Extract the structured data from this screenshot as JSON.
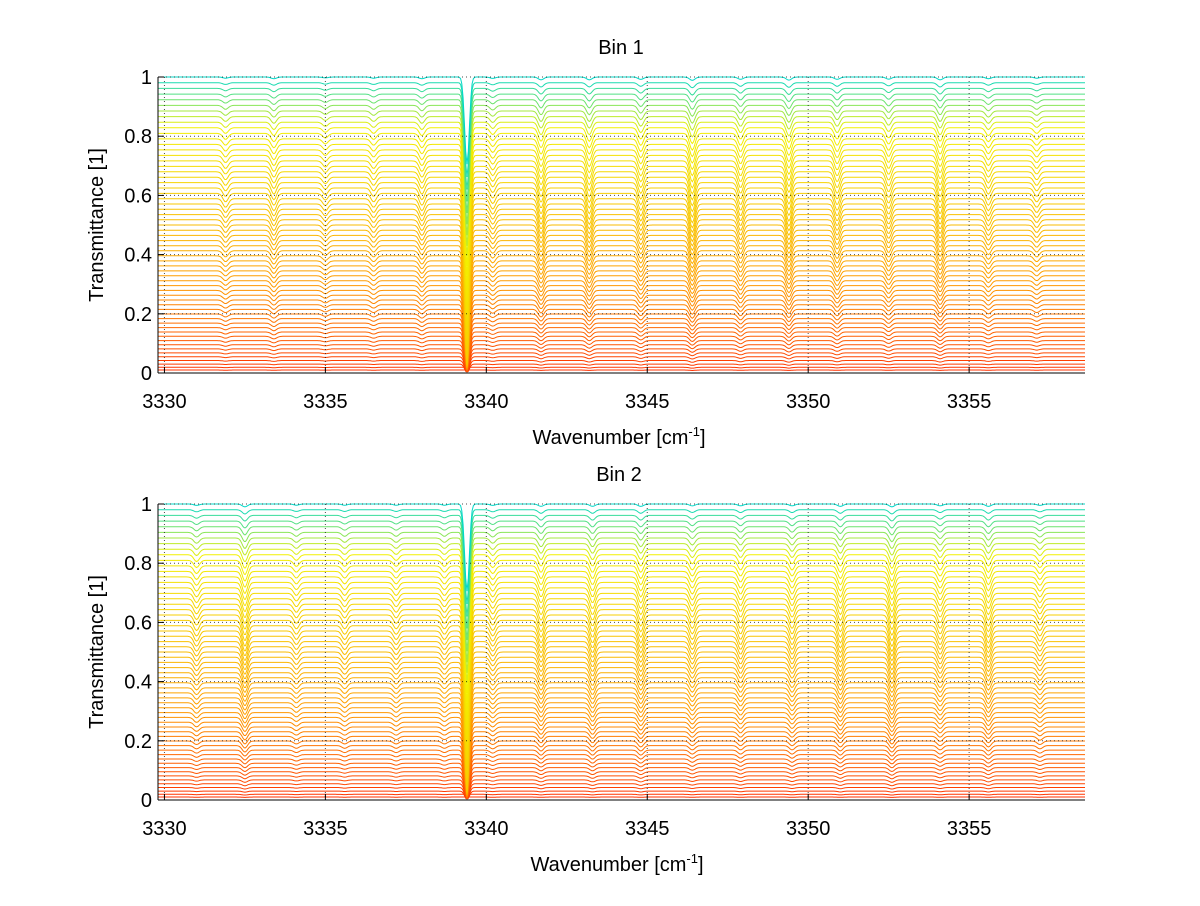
{
  "figure": {
    "background": "#ffffff"
  },
  "chart_data": [
    {
      "type": "line",
      "title": "Bin 1",
      "xlabel_main": "Wavenumber [cm",
      "xlabel_sup": "-1",
      "xlabel_close": "]",
      "ylabel": "Transmittance [1]",
      "xlim": [
        3329.8,
        3358.6
      ],
      "ylim": [
        0,
        1
      ],
      "xticks": [
        3330,
        3335,
        3340,
        3345,
        3350,
        3355
      ],
      "xtick_labels": [
        "3330",
        "3335",
        "3340",
        "3345",
        "3350",
        "3355"
      ],
      "yticks": [
        0,
        0.2,
        0.4,
        0.6,
        0.8,
        1
      ],
      "ytick_labels": [
        "0",
        "0.2",
        "0.4",
        "0.6",
        "0.8",
        "1"
      ],
      "grid": true,
      "colormap": "jet-upper (cyan → yellow → orange → red)",
      "colors": {
        "high": "#00d8c8",
        "mid": "#f2f000",
        "low_mid": "#ff9a00",
        "low": "#ff3000"
      },
      "series_count": 60,
      "baseline_range": [
        0.01,
        1.0
      ],
      "absorption_lines": [
        {
          "x": 3331.9,
          "depth": 0.05,
          "width": 0.12
        },
        {
          "x": 3333.4,
          "depth": 0.07,
          "width": 0.12
        },
        {
          "x": 3335.0,
          "depth": 0.04,
          "width": 0.12
        },
        {
          "x": 3336.5,
          "depth": 0.05,
          "width": 0.12
        },
        {
          "x": 3338.0,
          "depth": 0.07,
          "width": 0.12
        },
        {
          "x": 3339.4,
          "depth": 0.95,
          "width": 0.1
        },
        {
          "x": 3340.2,
          "depth": 0.06,
          "width": 0.12
        },
        {
          "x": 3341.7,
          "depth": 0.12,
          "width": 0.12
        },
        {
          "x": 3343.2,
          "depth": 0.12,
          "width": 0.12
        },
        {
          "x": 3344.8,
          "depth": 0.1,
          "width": 0.12
        },
        {
          "x": 3346.4,
          "depth": 0.14,
          "width": 0.12
        },
        {
          "x": 3347.9,
          "depth": 0.1,
          "width": 0.12
        },
        {
          "x": 3349.4,
          "depth": 0.13,
          "width": 0.12
        },
        {
          "x": 3350.9,
          "depth": 0.1,
          "width": 0.12
        },
        {
          "x": 3352.5,
          "depth": 0.09,
          "width": 0.12
        },
        {
          "x": 3354.1,
          "depth": 0.12,
          "width": 0.12
        },
        {
          "x": 3355.6,
          "depth": 0.07,
          "width": 0.12
        },
        {
          "x": 3357.1,
          "depth": 0.05,
          "width": 0.12
        }
      ]
    },
    {
      "type": "line",
      "title": "Bin 2",
      "xlabel_main": "Wavenumber [cm",
      "xlabel_sup": "-1",
      "xlabel_close": "]",
      "ylabel": "Transmittance [1]",
      "xlim": [
        3329.8,
        3358.6
      ],
      "ylim": [
        0,
        1
      ],
      "xticks": [
        3330,
        3335,
        3340,
        3345,
        3350,
        3355
      ],
      "xtick_labels": [
        "3330",
        "3335",
        "3340",
        "3345",
        "3350",
        "3355"
      ],
      "yticks": [
        0,
        0.2,
        0.4,
        0.6,
        0.8,
        1
      ],
      "ytick_labels": [
        "0",
        "0.2",
        "0.4",
        "0.6",
        "0.8",
        "1"
      ],
      "grid": true,
      "colormap": "jet-upper (cyan → yellow → orange → red)",
      "colors": {
        "high": "#00d8c8",
        "mid": "#f2f000",
        "low_mid": "#ff9a00",
        "low": "#ff3000"
      },
      "series_count": 60,
      "baseline_range": [
        0.01,
        1.0
      ],
      "absorption_lines": [
        {
          "x": 3331.0,
          "depth": 0.06,
          "width": 0.12
        },
        {
          "x": 3332.5,
          "depth": 0.12,
          "width": 0.12
        },
        {
          "x": 3334.1,
          "depth": 0.05,
          "width": 0.12
        },
        {
          "x": 3335.6,
          "depth": 0.05,
          "width": 0.12
        },
        {
          "x": 3337.2,
          "depth": 0.05,
          "width": 0.12
        },
        {
          "x": 3338.7,
          "depth": 0.05,
          "width": 0.12
        },
        {
          "x": 3339.4,
          "depth": 0.95,
          "width": 0.1
        },
        {
          "x": 3340.2,
          "depth": 0.06,
          "width": 0.12
        },
        {
          "x": 3341.7,
          "depth": 0.1,
          "width": 0.12
        },
        {
          "x": 3343.3,
          "depth": 0.1,
          "width": 0.12
        },
        {
          "x": 3344.8,
          "depth": 0.1,
          "width": 0.12
        },
        {
          "x": 3346.4,
          "depth": 0.08,
          "width": 0.12
        },
        {
          "x": 3347.9,
          "depth": 0.08,
          "width": 0.12
        },
        {
          "x": 3349.5,
          "depth": 0.08,
          "width": 0.12
        },
        {
          "x": 3351.0,
          "depth": 0.1,
          "width": 0.12
        },
        {
          "x": 3352.6,
          "depth": 0.12,
          "width": 0.12
        },
        {
          "x": 3354.1,
          "depth": 0.08,
          "width": 0.12
        },
        {
          "x": 3355.6,
          "depth": 0.1,
          "width": 0.12
        },
        {
          "x": 3357.2,
          "depth": 0.06,
          "width": 0.12
        }
      ]
    }
  ]
}
